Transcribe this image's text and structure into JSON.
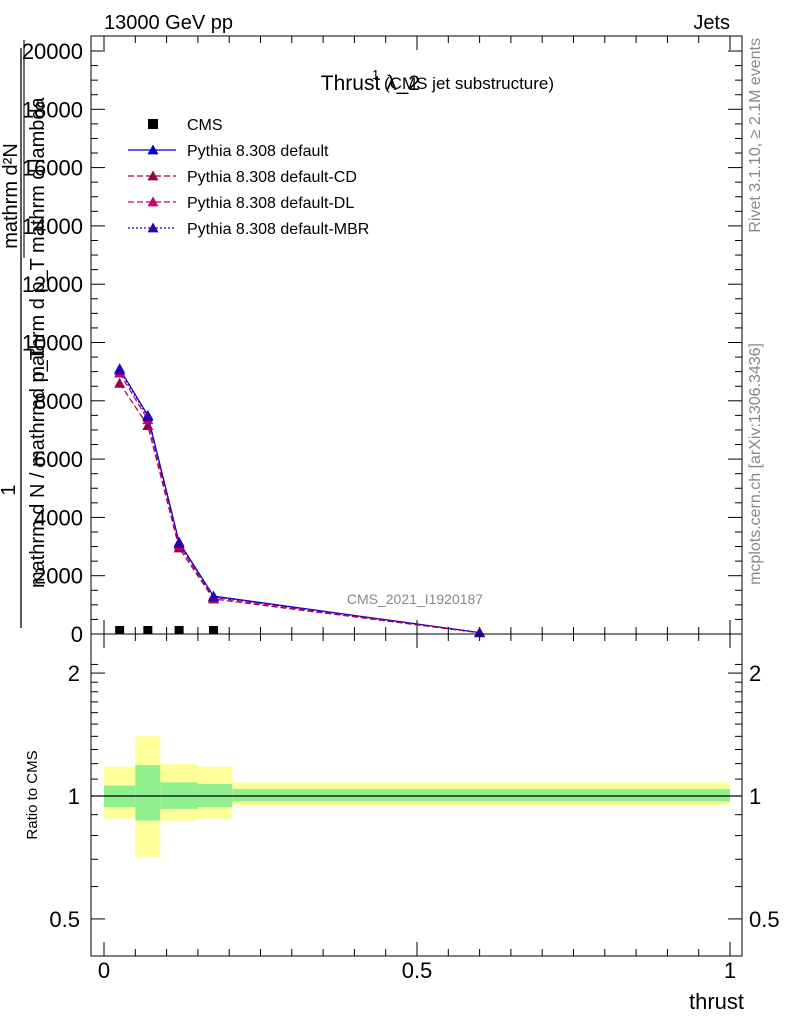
{
  "header": {
    "left": "13000 GeV pp",
    "right": "Jets"
  },
  "side": {
    "rivet": "Rivet 3.1.10, ≥ 2.1M events",
    "mcplots": "mcplots.cern.ch [arXiv:1306.3436]"
  },
  "chart_data": [
    {
      "type": "line",
      "title": "Thrust λ_2",
      "title_superscript": "1",
      "subtitle": "(CMS jet substructure)",
      "watermark": "CMS_2021_I1920187",
      "ylabel_top": "mathrm d²N",
      "ylabel_top_numerator": "1",
      "ylabel_top_denominator": "mathrm d p_T mathrm d lambda",
      "ylabel_bottom": "mathrm d N / mathrmd p_T",
      "xlim": [
        0,
        1
      ],
      "ylim": [
        0,
        20000
      ],
      "yticks": [
        0,
        2000,
        4000,
        6000,
        8000,
        10000,
        12000,
        14000,
        16000,
        18000,
        20000
      ],
      "ytick_labels": [
        "0",
        "2000",
        "4000",
        "6000",
        "8000",
        "10000",
        "12000",
        "14000",
        "16000",
        "18000",
        "20000"
      ],
      "legend": [
        {
          "label": "CMS",
          "color": "#000000",
          "marker": "square",
          "dash": "none"
        },
        {
          "label": "Pythia 8.308 default",
          "color": "#0000cc",
          "marker": "triangle",
          "dash": "solid"
        },
        {
          "label": "Pythia 8.308 default-CD",
          "color": "#99004d",
          "marker": "triangle",
          "dash": "dashed"
        },
        {
          "label": "Pythia 8.308 default-DL",
          "color": "#cc0066",
          "marker": "triangle",
          "dash": "dashed"
        },
        {
          "label": "Pythia 8.308 default-MBR",
          "color": "#3300aa",
          "marker": "triangle",
          "dash": "dotted"
        }
      ],
      "cms": {
        "x": [
          0.025,
          0.07,
          0.12,
          0.175
        ],
        "y": [
          0,
          0,
          0,
          0
        ]
      },
      "x": [
        0.025,
        0.07,
        0.12,
        0.175,
        0.6
      ],
      "series": [
        {
          "name": "Pythia 8.308 default",
          "values": [
            9100,
            7500,
            3150,
            1300,
            50
          ]
        },
        {
          "name": "Pythia 8.308 default-CD",
          "values": [
            8600,
            7150,
            2950,
            1200,
            40
          ]
        },
        {
          "name": "Pythia 8.308 default-DL",
          "values": [
            8950,
            7350,
            3050,
            1250,
            45
          ]
        },
        {
          "name": "Pythia 8.308 default-MBR",
          "values": [
            9050,
            7450,
            3100,
            1280,
            48
          ]
        }
      ]
    },
    {
      "type": "area",
      "ylabel": "Ratio to CMS",
      "xlabel": "thrust",
      "xlim": [
        0,
        1
      ],
      "ylim": [
        0.5,
        2.2
      ],
      "xticks": [
        0,
        0.5,
        1
      ],
      "xtick_labels": [
        "0",
        "0.5",
        "1"
      ],
      "ytick_labels_left": [
        "0.5",
        "1",
        "2"
      ],
      "ytick_labels_right": [
        "0.5",
        "1",
        "2"
      ],
      "bins": [
        {
          "lo": 0.0,
          "hi": 0.05,
          "inner": [
            0.94,
            1.06
          ],
          "outer": [
            0.88,
            1.18
          ]
        },
        {
          "lo": 0.05,
          "hi": 0.09,
          "inner": [
            0.87,
            1.19
          ],
          "outer": [
            0.71,
            1.4
          ]
        },
        {
          "lo": 0.09,
          "hi": 0.15,
          "inner": [
            0.93,
            1.08
          ],
          "outer": [
            0.87,
            1.2
          ]
        },
        {
          "lo": 0.15,
          "hi": 0.205,
          "inner": [
            0.94,
            1.07
          ],
          "outer": [
            0.88,
            1.18
          ]
        },
        {
          "lo": 0.205,
          "hi": 1.0,
          "inner": [
            0.97,
            1.04
          ],
          "outer": [
            0.95,
            1.08
          ]
        }
      ],
      "inner_color": "#8ef08e",
      "outer_color": "#ffff99"
    }
  ]
}
